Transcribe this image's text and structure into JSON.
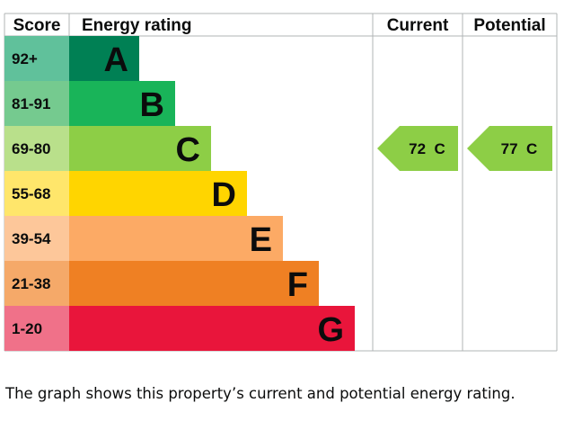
{
  "chart_data": {
    "type": "bar",
    "headers": {
      "score": "Score",
      "rating": "Energy rating",
      "current": "Current",
      "potential": "Potential"
    },
    "bands": [
      {
        "range": "92+",
        "letter": "A",
        "color": "#008054",
        "score_color": "#60c19b"
      },
      {
        "range": "81-91",
        "letter": "B",
        "color": "#19b459",
        "score_color": "#75ca8f"
      },
      {
        "range": "69-80",
        "letter": "C",
        "color": "#8dce46",
        "score_color": "#b9e08b"
      },
      {
        "range": "55-68",
        "letter": "D",
        "color": "#ffd500",
        "score_color": "#ffe66b"
      },
      {
        "range": "39-54",
        "letter": "E",
        "color": "#fcaa65",
        "score_color": "#fdc79a"
      },
      {
        "range": "21-38",
        "letter": "F",
        "color": "#ef8023",
        "score_color": "#f5a969"
      },
      {
        "range": "1-20",
        "letter": "G",
        "color": "#e9153b",
        "score_color": "#f07189"
      }
    ],
    "current": {
      "value": 72,
      "band": "C",
      "label": "72  C"
    },
    "potential": {
      "value": 77,
      "band": "C",
      "label": "77  C"
    }
  },
  "caption": "The graph shows this property’s current and potential energy rating."
}
